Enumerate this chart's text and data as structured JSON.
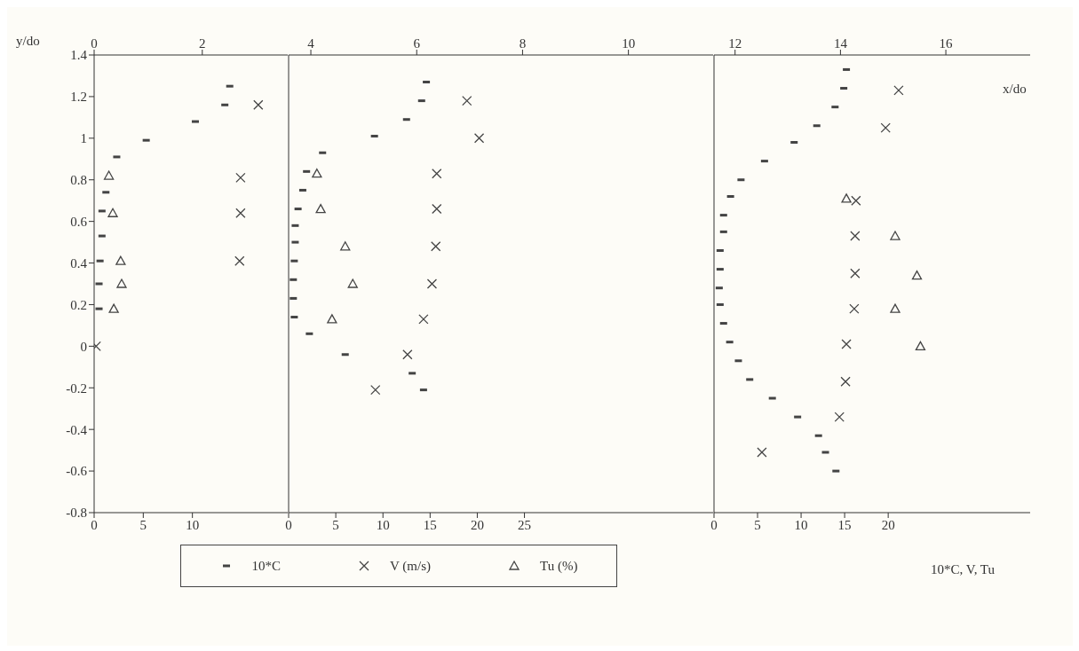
{
  "chart_data": [
    {
      "type": "scatter",
      "ylabel": "y/do",
      "legend": "bottom",
      "xlim": [
        0,
        19.7
      ],
      "xticks": [
        0,
        5,
        10
      ],
      "x2lim": [
        0,
        3.58
      ],
      "x2ticks": [
        0,
        2
      ],
      "ylim": [
        -0.8,
        1.4
      ],
      "yticks": [
        -0.8,
        -0.6,
        -0.4,
        -0.2,
        0,
        0.2,
        0.4,
        0.6,
        0.8,
        1,
        1.2,
        1.4
      ],
      "grid": false,
      "series": [
        {
          "name": "10*C",
          "color": "#444444",
          "x": [
            13.8,
            13.3,
            10.3,
            5.3,
            2.3,
            1.2,
            0.8,
            0.8,
            0.6,
            0.5,
            0.5
          ],
          "values": [
            1.25,
            1.16,
            1.08,
            0.99,
            0.91,
            0.74,
            0.65,
            0.53,
            0.41,
            0.3,
            0.18
          ]
        },
        {
          "name": "V (m/s)",
          "color": "#444444",
          "marker": "cross",
          "x": [
            16.7,
            14.9,
            14.9,
            14.8,
            0.2
          ],
          "values": [
            1.16,
            0.81,
            0.64,
            0.41,
            0
          ]
        },
        {
          "name": "Tu (%)",
          "color": "#444444",
          "marker": "triangle",
          "x": [
            1.5,
            1.9,
            2.7,
            2.8,
            2.0
          ],
          "values": [
            0.82,
            0.64,
            0.41,
            0.3,
            0.18
          ]
        }
      ]
    },
    {
      "type": "scatter",
      "tick_labels": "x",
      "xlim": [
        0,
        45
      ],
      "xticks": [
        0,
        5,
        10,
        15,
        20,
        25
      ],
      "x2lim": [
        3.58,
        11.6
      ],
      "x2ticks": [
        4,
        6,
        8,
        10
      ],
      "ylim": [
        -0.8,
        1.4
      ],
      "grid": false,
      "series": [
        {
          "color": "#444444",
          "x": [
            14.6,
            14.1,
            12.5,
            9.1,
            3.6,
            1.9,
            1.5,
            1.0,
            0.7,
            0.7,
            0.6,
            0.5,
            0.5,
            0.6,
            2.2,
            6.0,
            13.1,
            14.3
          ],
          "values": [
            1.27,
            1.18,
            1.09,
            1.01,
            0.93,
            0.84,
            0.75,
            0.66,
            0.58,
            0.5,
            0.41,
            0.32,
            0.23,
            0.14,
            0.06,
            -0.04,
            -0.13,
            -0.21
          ]
        },
        {
          "color": "#444444",
          "marker": "cross",
          "x": [
            18.9,
            20.2,
            15.7,
            15.7,
            15.6,
            15.2,
            14.3,
            12.6,
            9.2
          ],
          "values": [
            1.18,
            1.0,
            0.83,
            0.66,
            0.48,
            0.3,
            0.13,
            -0.04,
            -0.21
          ]
        },
        {
          "color": "#444444",
          "marker": "triangle",
          "x": [
            3.0,
            3.4,
            6.0,
            6.8,
            4.6
          ],
          "values": [
            0.83,
            0.66,
            0.48,
            0.3,
            0.13
          ]
        }
      ]
    },
    {
      "type": "scatter",
      "tick_labels": "x",
      "xlabel": "10*C, V, Tu",
      "x2label": "x/do",
      "xlim": [
        0,
        36.3
      ],
      "xticks": [
        0,
        5,
        10,
        15,
        20
      ],
      "x2lim": [
        11.6,
        17.6
      ],
      "x2ticks": [
        12,
        14,
        16
      ],
      "ylim": [
        -0.8,
        1.4
      ],
      "grid": false,
      "series": [
        {
          "color": "#444444",
          "x": [
            15.2,
            14.9,
            13.9,
            11.8,
            9.2,
            5.8,
            3.1,
            1.9,
            1.1,
            1.1,
            0.7,
            0.7,
            0.6,
            0.7,
            1.1,
            1.8,
            2.8,
            4.1,
            6.7,
            9.6,
            12.0,
            12.8,
            14.0
          ],
          "values": [
            1.33,
            1.24,
            1.15,
            1.06,
            0.98,
            0.89,
            0.8,
            0.72,
            0.63,
            0.55,
            0.46,
            0.37,
            0.28,
            0.2,
            0.11,
            0.02,
            -0.07,
            -0.16,
            -0.25,
            -0.34,
            -0.43,
            -0.51,
            -0.6
          ]
        },
        {
          "color": "#444444",
          "marker": "cross",
          "x": [
            21.2,
            19.7,
            16.3,
            16.2,
            16.2,
            16.1,
            15.2,
            15.1,
            14.4,
            5.5
          ],
          "values": [
            1.23,
            1.05,
            0.7,
            0.53,
            0.35,
            0.18,
            0.01,
            -0.17,
            -0.34,
            -0.51
          ]
        },
        {
          "color": "#444444",
          "marker": "triangle",
          "x": [
            15.2,
            20.8,
            23.3,
            20.8,
            23.7
          ],
          "values": [
            0.71,
            0.53,
            0.34,
            0.18,
            0
          ]
        }
      ]
    }
  ]
}
